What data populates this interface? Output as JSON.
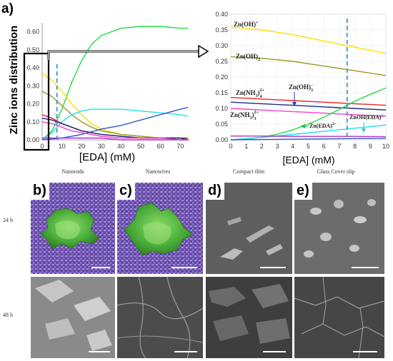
{
  "panel_label_a": "a)",
  "left_chart": {
    "ylabel": "Zinc ions distribution",
    "xlabel": "[EDA] (mM)",
    "xticks": [
      "0",
      "10",
      "20",
      "30",
      "40",
      "50",
      "60",
      "70"
    ],
    "yticks": [
      "0.00",
      "0.10",
      "0.20",
      "0.30",
      "0.40",
      "0.50",
      "0.60"
    ]
  },
  "right_chart": {
    "xlabel": "[EDA] (mM)",
    "xticks": [
      "0",
      "1",
      "2",
      "3",
      "4",
      "5",
      "6",
      "7",
      "8",
      "9",
      "10"
    ],
    "yticks": [
      "0.00",
      "0.05",
      "0.10",
      "0.15",
      "0.20",
      "0.25",
      "0.30",
      "0.35",
      "0.40"
    ],
    "species": {
      "zn_oh": "Zn(OH)",
      "zn_oh2": "Zn(OH)",
      "zn_nh3_4": "Zn(NH",
      "zn_oh3": "Zn(OH)",
      "zn_nh3_3": "Zn(NH",
      "zn_eda": "Zn(EDA)",
      "znoh_eda": "ZnOH(EDA)"
    }
  },
  "chart_data": [
    {
      "type": "line",
      "xlabel": "[EDA] (mM)",
      "ylabel": "Zinc ions distribution",
      "xlim": [
        0,
        75
      ],
      "ylim": [
        0,
        0.65
      ],
      "series": [
        {
          "color": "#22dd44",
          "x": [
            0,
            5,
            10,
            15,
            20,
            25,
            30,
            40,
            50,
            60,
            70,
            74
          ],
          "y": [
            0,
            0.05,
            0.17,
            0.32,
            0.44,
            0.53,
            0.58,
            0.62,
            0.63,
            0.63,
            0.62,
            0.62
          ]
        },
        {
          "color": "#ffdd00",
          "x": [
            0,
            5,
            10,
            15,
            20,
            25,
            30,
            40,
            50,
            60,
            70,
            74
          ],
          "y": [
            0.37,
            0.33,
            0.27,
            0.2,
            0.14,
            0.09,
            0.06,
            0.03,
            0.02,
            0.01,
            0.01,
            0.01
          ]
        },
        {
          "color": "#999922",
          "x": [
            0,
            5,
            10,
            15,
            20,
            25,
            30,
            40,
            50,
            60,
            70,
            74
          ],
          "y": [
            0.27,
            0.24,
            0.19,
            0.14,
            0.1,
            0.07,
            0.05,
            0.03,
            0.02,
            0.01,
            0.01,
            0.01
          ]
        },
        {
          "color": "#22ddee",
          "x": [
            0,
            5,
            10,
            15,
            20,
            25,
            30,
            40,
            50,
            60,
            70,
            74
          ],
          "y": [
            0,
            0.04,
            0.1,
            0.14,
            0.16,
            0.17,
            0.17,
            0.17,
            0.16,
            0.15,
            0.14,
            0.13
          ]
        },
        {
          "color": "#3355cc",
          "x": [
            0,
            10,
            20,
            30,
            40,
            50,
            60,
            70,
            74
          ],
          "y": [
            0,
            0.01,
            0.03,
            0.06,
            0.08,
            0.11,
            0.14,
            0.17,
            0.18
          ]
        },
        {
          "color": "#ee2222",
          "x": [
            0,
            5,
            10,
            15,
            20,
            25,
            30,
            40,
            50,
            60,
            70,
            74
          ],
          "y": [
            0.14,
            0.12,
            0.09,
            0.07,
            0.05,
            0.04,
            0.03,
            0.02,
            0.01,
            0.01,
            0.01,
            0.01
          ]
        },
        {
          "color": "#1a2a88",
          "x": [
            0,
            5,
            10,
            15,
            20,
            25,
            30,
            40,
            50,
            60,
            70,
            74
          ],
          "y": [
            0.12,
            0.11,
            0.09,
            0.07,
            0.05,
            0.04,
            0.03,
            0.02,
            0.01,
            0.01,
            0.01,
            0.0
          ]
        },
        {
          "color": "#ee44cc",
          "x": [
            0,
            5,
            10,
            15,
            20,
            25,
            30,
            40,
            50,
            60,
            70,
            74
          ],
          "y": [
            0.1,
            0.09,
            0.07,
            0.05,
            0.04,
            0.03,
            0.02,
            0.01,
            0.01,
            0.01,
            0.0,
            0.0
          ]
        },
        {
          "color": "#aa33cc",
          "x": [
            0,
            10,
            20,
            30,
            40,
            50,
            60,
            70,
            74
          ],
          "y": [
            0.01,
            0.01,
            0.01,
            0.01,
            0.0,
            0.0,
            0.0,
            0.0,
            0.0
          ]
        }
      ],
      "vline_x": 7.5
    },
    {
      "type": "line",
      "xlabel": "[EDA] (mM)",
      "xlim": [
        0,
        10
      ],
      "ylim": [
        0,
        0.4
      ],
      "series": [
        {
          "color": "#ffdd00",
          "x": [
            0,
            2,
            4,
            6,
            8,
            10
          ],
          "y": [
            0.36,
            0.35,
            0.335,
            0.315,
            0.295,
            0.275
          ]
        },
        {
          "color": "#999922",
          "x": [
            0,
            2,
            4,
            6,
            8,
            10
          ],
          "y": [
            0.265,
            0.26,
            0.25,
            0.235,
            0.22,
            0.205
          ]
        },
        {
          "color": "#ee2222",
          "x": [
            0,
            2,
            4,
            6,
            8,
            10
          ],
          "y": [
            0.135,
            0.13,
            0.125,
            0.12,
            0.115,
            0.11
          ]
        },
        {
          "color": "#1a2a88",
          "x": [
            0,
            2,
            4,
            6,
            8,
            10
          ],
          "y": [
            0.12,
            0.115,
            0.11,
            0.105,
            0.1,
            0.095
          ]
        },
        {
          "color": "#ee44cc",
          "x": [
            0,
            2,
            4,
            6,
            8,
            10
          ],
          "y": [
            0.1,
            0.095,
            0.09,
            0.085,
            0.08,
            0.075
          ]
        },
        {
          "color": "#22dd44",
          "x": [
            0,
            1,
            2,
            3,
            4,
            5,
            6,
            7,
            8,
            9,
            10
          ],
          "y": [
            0,
            0.002,
            0.008,
            0.018,
            0.032,
            0.05,
            0.072,
            0.097,
            0.123,
            0.145,
            0.165
          ]
        },
        {
          "color": "#22ddee",
          "x": [
            0,
            2,
            4,
            6,
            8,
            10
          ],
          "y": [
            0,
            0.008,
            0.017,
            0.027,
            0.037,
            0.047
          ]
        },
        {
          "color": "#aa33cc",
          "x": [
            0,
            2,
            4,
            6,
            8,
            10
          ],
          "y": [
            0.012,
            0.012,
            0.011,
            0.011,
            0.011,
            0.01
          ]
        },
        {
          "color": "#3355cc",
          "x": [
            0,
            2,
            4,
            6,
            8,
            10
          ],
          "y": [
            0.0,
            0.001,
            0.002,
            0.003,
            0.004,
            0.005
          ]
        }
      ],
      "vline_x": 7.5
    }
  ],
  "sem": {
    "col_headers": [
      "Nanorods",
      "Nanowires",
      "Compact film",
      "Glass Cover slip"
    ],
    "row_labels": [
      "24 h",
      "48 h"
    ],
    "panel_labels": [
      "b)",
      "c)",
      "d)",
      "e)"
    ]
  }
}
